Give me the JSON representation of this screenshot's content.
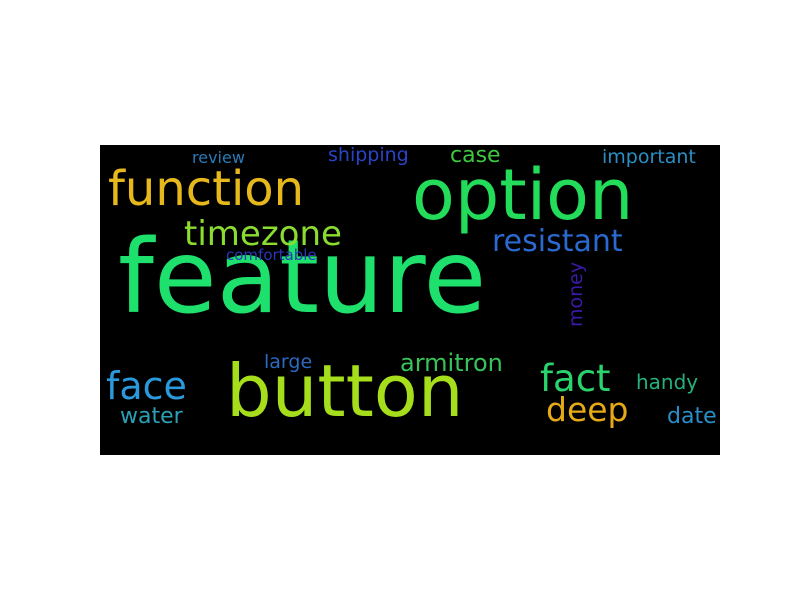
{
  "wordcloud": {
    "background": "#000000",
    "words": [
      {
        "text": "feature",
        "color": "#1ee06c",
        "rotation": 0
      },
      {
        "text": "option",
        "color": "#22dc5a",
        "rotation": 0
      },
      {
        "text": "button",
        "color": "#a6de1c",
        "rotation": 0
      },
      {
        "text": "function",
        "color": "#e6b81c",
        "rotation": 0
      },
      {
        "text": "timezone",
        "color": "#8adc30",
        "rotation": 0
      },
      {
        "text": "resistant",
        "color": "#2a6ad0",
        "rotation": 0
      },
      {
        "text": "face",
        "color": "#2a9adc",
        "rotation": 0
      },
      {
        "text": "fact",
        "color": "#2ad46c",
        "rotation": 0
      },
      {
        "text": "deep",
        "color": "#e6aa16",
        "rotation": 0
      },
      {
        "text": "armitron",
        "color": "#3ac25a",
        "rotation": 0
      },
      {
        "text": "case",
        "color": "#3ec840",
        "rotation": 0
      },
      {
        "text": "shipping",
        "color": "#2a44c8",
        "rotation": 0
      },
      {
        "text": "important",
        "color": "#2a8ec4",
        "rotation": 0
      },
      {
        "text": "review",
        "color": "#2a7ab8",
        "rotation": 0
      },
      {
        "text": "comfortable",
        "color": "#2a36b8",
        "rotation": 0
      },
      {
        "text": "large",
        "color": "#2a6ac0",
        "rotation": 0
      },
      {
        "text": "money",
        "color": "#3a1aa8",
        "rotation": -90
      },
      {
        "text": "handy",
        "color": "#26b07a",
        "rotation": 0
      },
      {
        "text": "water",
        "color": "#2aa0b4",
        "rotation": 0
      },
      {
        "text": "date",
        "color": "#2a8ec8",
        "rotation": 0
      }
    ]
  }
}
